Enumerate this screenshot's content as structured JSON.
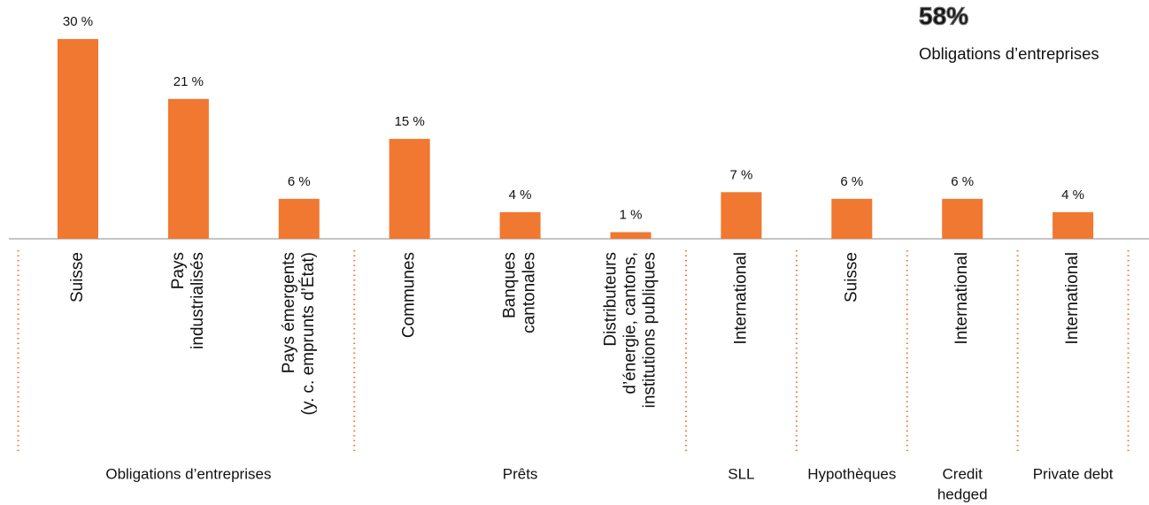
{
  "chart_data": {
    "type": "bar",
    "color": "#f07830",
    "group_color": "#ef7a31",
    "annotation": {
      "value_label": "58%",
      "text": "Obligations d’entreprises"
    },
    "groups": [
      {
        "name": [
          "Obligations d’entreprises"
        ],
        "categories": [
          [
            "Suisse"
          ],
          [
            "Pays",
            "industrialisés"
          ],
          [
            "Pays émergents",
            "(y. c. emprunts d’État)"
          ]
        ],
        "values": [
          30,
          21,
          6
        ],
        "value_labels": [
          "30 %",
          "21 %",
          "6 %"
        ]
      },
      {
        "name": [
          "Prêts"
        ],
        "categories": [
          [
            "Communes"
          ],
          [
            "Banques",
            "cantonales"
          ],
          [
            "Distributeurs",
            "d’énergie, cantons,",
            "institutions publiques"
          ]
        ],
        "values": [
          15,
          4,
          1
        ],
        "value_labels": [
          "15 %",
          "4 %",
          "1 %"
        ]
      },
      {
        "name": [
          "SLL"
        ],
        "categories": [
          [
            "International"
          ]
        ],
        "values": [
          7
        ],
        "value_labels": [
          "7 %"
        ]
      },
      {
        "name": [
          "Hypothèques"
        ],
        "categories": [
          [
            "Suisse"
          ]
        ],
        "values": [
          6
        ],
        "value_labels": [
          "6 %"
        ]
      },
      {
        "name": [
          "Credit",
          "hedged"
        ],
        "categories": [
          [
            "International"
          ]
        ],
        "values": [
          6
        ],
        "value_labels": [
          "6 %"
        ]
      },
      {
        "name": [
          "Private debt"
        ],
        "categories": [
          [
            "International"
          ]
        ],
        "values": [
          4
        ],
        "value_labels": [
          "4 %"
        ]
      }
    ]
  }
}
